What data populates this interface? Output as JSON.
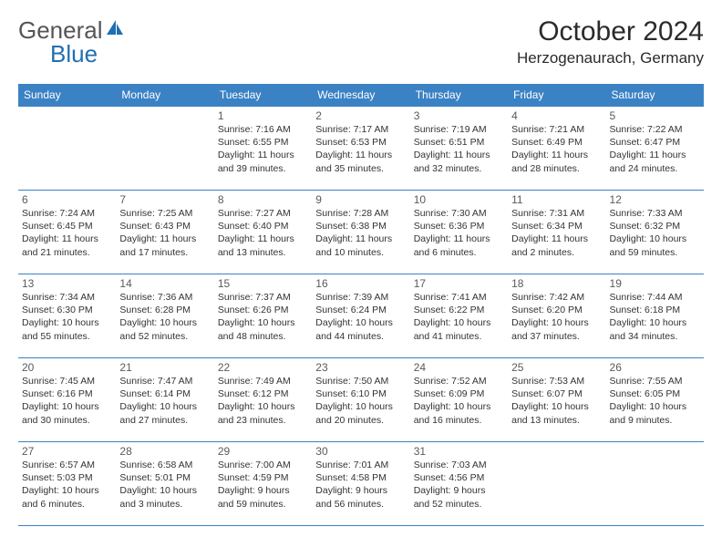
{
  "brand": {
    "part1": "General",
    "part2": "Blue"
  },
  "colors": {
    "header_bg": "#3b82c4",
    "header_text": "#ffffff",
    "border": "#3b82c4",
    "text": "#333333",
    "logo_gray": "#6b6b6b",
    "logo_blue": "#1f6fb2"
  },
  "title": "October 2024",
  "location": "Herzogenaurach, Germany",
  "day_headers": [
    "Sunday",
    "Monday",
    "Tuesday",
    "Wednesday",
    "Thursday",
    "Friday",
    "Saturday"
  ],
  "weeks": [
    [
      null,
      null,
      {
        "n": "1",
        "sr": "Sunrise: 7:16 AM",
        "ss": "Sunset: 6:55 PM",
        "d1": "Daylight: 11 hours",
        "d2": "and 39 minutes."
      },
      {
        "n": "2",
        "sr": "Sunrise: 7:17 AM",
        "ss": "Sunset: 6:53 PM",
        "d1": "Daylight: 11 hours",
        "d2": "and 35 minutes."
      },
      {
        "n": "3",
        "sr": "Sunrise: 7:19 AM",
        "ss": "Sunset: 6:51 PM",
        "d1": "Daylight: 11 hours",
        "d2": "and 32 minutes."
      },
      {
        "n": "4",
        "sr": "Sunrise: 7:21 AM",
        "ss": "Sunset: 6:49 PM",
        "d1": "Daylight: 11 hours",
        "d2": "and 28 minutes."
      },
      {
        "n": "5",
        "sr": "Sunrise: 7:22 AM",
        "ss": "Sunset: 6:47 PM",
        "d1": "Daylight: 11 hours",
        "d2": "and 24 minutes."
      }
    ],
    [
      {
        "n": "6",
        "sr": "Sunrise: 7:24 AM",
        "ss": "Sunset: 6:45 PM",
        "d1": "Daylight: 11 hours",
        "d2": "and 21 minutes."
      },
      {
        "n": "7",
        "sr": "Sunrise: 7:25 AM",
        "ss": "Sunset: 6:43 PM",
        "d1": "Daylight: 11 hours",
        "d2": "and 17 minutes."
      },
      {
        "n": "8",
        "sr": "Sunrise: 7:27 AM",
        "ss": "Sunset: 6:40 PM",
        "d1": "Daylight: 11 hours",
        "d2": "and 13 minutes."
      },
      {
        "n": "9",
        "sr": "Sunrise: 7:28 AM",
        "ss": "Sunset: 6:38 PM",
        "d1": "Daylight: 11 hours",
        "d2": "and 10 minutes."
      },
      {
        "n": "10",
        "sr": "Sunrise: 7:30 AM",
        "ss": "Sunset: 6:36 PM",
        "d1": "Daylight: 11 hours",
        "d2": "and 6 minutes."
      },
      {
        "n": "11",
        "sr": "Sunrise: 7:31 AM",
        "ss": "Sunset: 6:34 PM",
        "d1": "Daylight: 11 hours",
        "d2": "and 2 minutes."
      },
      {
        "n": "12",
        "sr": "Sunrise: 7:33 AM",
        "ss": "Sunset: 6:32 PM",
        "d1": "Daylight: 10 hours",
        "d2": "and 59 minutes."
      }
    ],
    [
      {
        "n": "13",
        "sr": "Sunrise: 7:34 AM",
        "ss": "Sunset: 6:30 PM",
        "d1": "Daylight: 10 hours",
        "d2": "and 55 minutes."
      },
      {
        "n": "14",
        "sr": "Sunrise: 7:36 AM",
        "ss": "Sunset: 6:28 PM",
        "d1": "Daylight: 10 hours",
        "d2": "and 52 minutes."
      },
      {
        "n": "15",
        "sr": "Sunrise: 7:37 AM",
        "ss": "Sunset: 6:26 PM",
        "d1": "Daylight: 10 hours",
        "d2": "and 48 minutes."
      },
      {
        "n": "16",
        "sr": "Sunrise: 7:39 AM",
        "ss": "Sunset: 6:24 PM",
        "d1": "Daylight: 10 hours",
        "d2": "and 44 minutes."
      },
      {
        "n": "17",
        "sr": "Sunrise: 7:41 AM",
        "ss": "Sunset: 6:22 PM",
        "d1": "Daylight: 10 hours",
        "d2": "and 41 minutes."
      },
      {
        "n": "18",
        "sr": "Sunrise: 7:42 AM",
        "ss": "Sunset: 6:20 PM",
        "d1": "Daylight: 10 hours",
        "d2": "and 37 minutes."
      },
      {
        "n": "19",
        "sr": "Sunrise: 7:44 AM",
        "ss": "Sunset: 6:18 PM",
        "d1": "Daylight: 10 hours",
        "d2": "and 34 minutes."
      }
    ],
    [
      {
        "n": "20",
        "sr": "Sunrise: 7:45 AM",
        "ss": "Sunset: 6:16 PM",
        "d1": "Daylight: 10 hours",
        "d2": "and 30 minutes."
      },
      {
        "n": "21",
        "sr": "Sunrise: 7:47 AM",
        "ss": "Sunset: 6:14 PM",
        "d1": "Daylight: 10 hours",
        "d2": "and 27 minutes."
      },
      {
        "n": "22",
        "sr": "Sunrise: 7:49 AM",
        "ss": "Sunset: 6:12 PM",
        "d1": "Daylight: 10 hours",
        "d2": "and 23 minutes."
      },
      {
        "n": "23",
        "sr": "Sunrise: 7:50 AM",
        "ss": "Sunset: 6:10 PM",
        "d1": "Daylight: 10 hours",
        "d2": "and 20 minutes."
      },
      {
        "n": "24",
        "sr": "Sunrise: 7:52 AM",
        "ss": "Sunset: 6:09 PM",
        "d1": "Daylight: 10 hours",
        "d2": "and 16 minutes."
      },
      {
        "n": "25",
        "sr": "Sunrise: 7:53 AM",
        "ss": "Sunset: 6:07 PM",
        "d1": "Daylight: 10 hours",
        "d2": "and 13 minutes."
      },
      {
        "n": "26",
        "sr": "Sunrise: 7:55 AM",
        "ss": "Sunset: 6:05 PM",
        "d1": "Daylight: 10 hours",
        "d2": "and 9 minutes."
      }
    ],
    [
      {
        "n": "27",
        "sr": "Sunrise: 6:57 AM",
        "ss": "Sunset: 5:03 PM",
        "d1": "Daylight: 10 hours",
        "d2": "and 6 minutes."
      },
      {
        "n": "28",
        "sr": "Sunrise: 6:58 AM",
        "ss": "Sunset: 5:01 PM",
        "d1": "Daylight: 10 hours",
        "d2": "and 3 minutes."
      },
      {
        "n": "29",
        "sr": "Sunrise: 7:00 AM",
        "ss": "Sunset: 4:59 PM",
        "d1": "Daylight: 9 hours",
        "d2": "and 59 minutes."
      },
      {
        "n": "30",
        "sr": "Sunrise: 7:01 AM",
        "ss": "Sunset: 4:58 PM",
        "d1": "Daylight: 9 hours",
        "d2": "and 56 minutes."
      },
      {
        "n": "31",
        "sr": "Sunrise: 7:03 AM",
        "ss": "Sunset: 4:56 PM",
        "d1": "Daylight: 9 hours",
        "d2": "and 52 minutes."
      },
      null,
      null
    ]
  ]
}
